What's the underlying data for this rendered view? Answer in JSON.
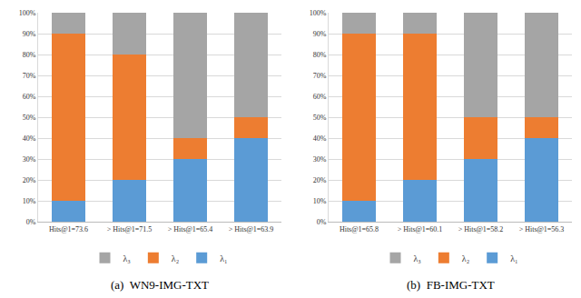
{
  "chart_data": [
    {
      "type": "bar",
      "title": "(a)  WN9-IMG-TXT",
      "stacked": true,
      "grid": true,
      "legend": "bottom",
      "categories": [
        "Hits@1=73.6",
        "> Hits@1=71.5",
        "> Hits@1=65.4",
        "> Hits@1=63.9"
      ],
      "series": [
        {
          "name": "λ₁",
          "color": "#5b9bd5",
          "values": [
            10,
            20,
            30,
            40
          ]
        },
        {
          "name": "λ₂",
          "color": "#ed7d31",
          "values": [
            80,
            60,
            10,
            10
          ]
        },
        {
          "name": "λ₃",
          "color": "#a5a5a5",
          "values": [
            10,
            20,
            60,
            50
          ]
        }
      ],
      "ylim": [
        0,
        100
      ],
      "yticks": [
        {
          "value": 0,
          "label": "0%"
        },
        {
          "value": 10,
          "label": "10%"
        },
        {
          "value": 20,
          "label": "20%"
        },
        {
          "value": 30,
          "label": "30%"
        },
        {
          "value": 40,
          "label": "40%"
        },
        {
          "value": 50,
          "label": "50%"
        },
        {
          "value": 60,
          "label": "60%"
        },
        {
          "value": 70,
          "label": "70%"
        },
        {
          "value": 80,
          "label": "80%"
        },
        {
          "value": 90,
          "label": "90%"
        },
        {
          "value": 100,
          "label": "100%"
        }
      ]
    },
    {
      "type": "bar",
      "title": "(b)  FB-IMG-TXT",
      "stacked": true,
      "grid": true,
      "legend": "bottom",
      "categories": [
        "Hits@1=65.8",
        "> Hits@1=60.1",
        "> Hits@1=58.2",
        "> Hits@1=56.3"
      ],
      "series": [
        {
          "name": "λ₁",
          "color": "#5b9bd5",
          "values": [
            10,
            20,
            30,
            40
          ]
        },
        {
          "name": "λ₂",
          "color": "#ed7d31",
          "values": [
            80,
            70,
            20,
            10
          ]
        },
        {
          "name": "λ₃",
          "color": "#a5a5a5",
          "values": [
            10,
            10,
            50,
            50
          ]
        }
      ],
      "ylim": [
        0,
        100
      ],
      "yticks": [
        {
          "value": 0,
          "label": "0%"
        },
        {
          "value": 10,
          "label": "10%"
        },
        {
          "value": 20,
          "label": "20%"
        },
        {
          "value": 30,
          "label": "30%"
        },
        {
          "value": 40,
          "label": "40%"
        },
        {
          "value": 50,
          "label": "50%"
        },
        {
          "value": 60,
          "label": "60%"
        },
        {
          "value": 70,
          "label": "70%"
        },
        {
          "value": 80,
          "label": "80%"
        },
        {
          "value": 90,
          "label": "90%"
        },
        {
          "value": 100,
          "label": "100%"
        }
      ]
    }
  ]
}
